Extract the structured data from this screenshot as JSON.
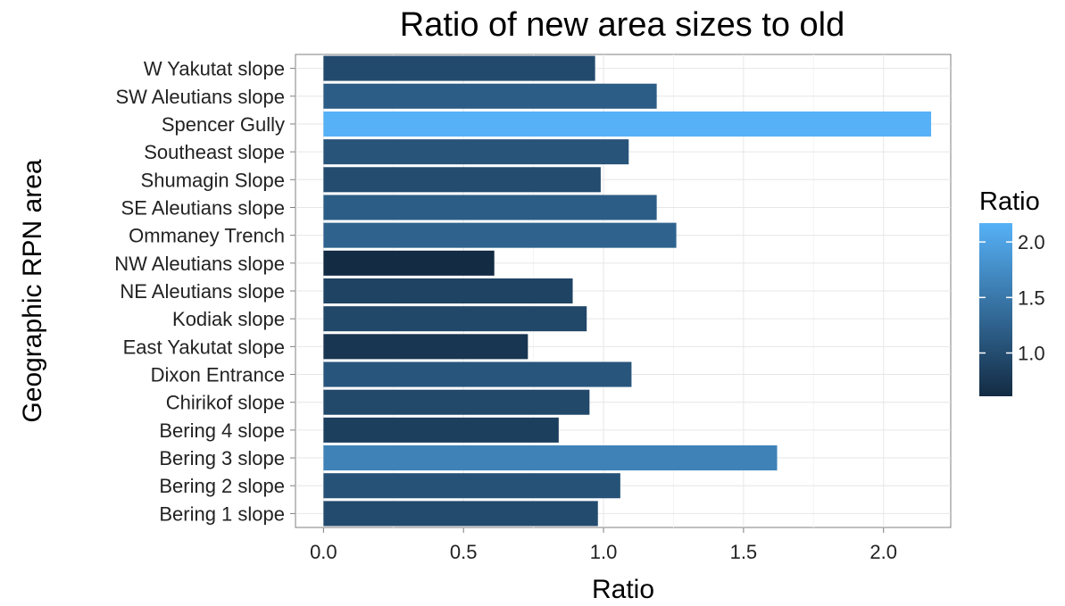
{
  "chart_data": {
    "type": "bar",
    "orientation": "horizontal",
    "title": "Ratio of new area sizes to old",
    "xlabel": "Ratio",
    "ylabel": "Geographic RPN area",
    "xlim": [
      -0.1,
      2.24
    ],
    "x_ticks": [
      "0.0",
      "0.5",
      "1.0",
      "1.5",
      "2.0"
    ],
    "grid": true,
    "legend_placement": "right",
    "categories": [
      "W Yakutat slope",
      "SW Aleutians slope",
      "Spencer Gully",
      "Southeast slope",
      "Shumagin Slope",
      "SE Aleutians slope",
      "Ommaney Trench",
      "NW Aleutians slope",
      "NE Aleutians slope",
      "Kodiak slope",
      "East Yakutat slope",
      "Dixon Entrance",
      "Chirikof slope",
      "Bering 4 slope",
      "Bering 3 slope",
      "Bering 2 slope",
      "Bering 1 slope"
    ],
    "values": [
      0.97,
      1.19,
      2.17,
      1.09,
      0.99,
      1.19,
      1.26,
      0.61,
      0.89,
      0.94,
      0.73,
      1.1,
      0.95,
      0.84,
      1.62,
      1.06,
      0.98
    ],
    "colorbar": {
      "title": "Ratio",
      "ticks": [
        "1.0",
        "1.5",
        "2.0"
      ],
      "range": [
        0.61,
        2.17
      ],
      "low_color": "#132B43",
      "high_color": "#56B1F7"
    }
  }
}
